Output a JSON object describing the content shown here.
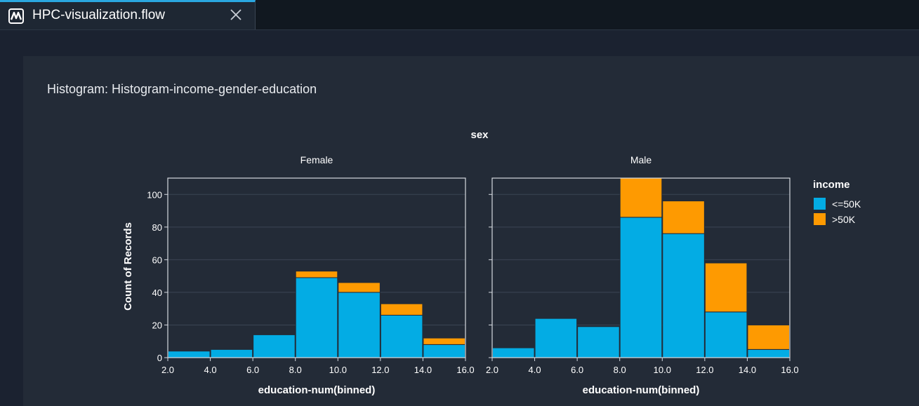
{
  "tab": {
    "title": "HPC-visualization.flow",
    "icon": "waveform-flow-icon",
    "close_icon": "close-icon",
    "accent": "#2aa7e0"
  },
  "panel": {
    "title": "Histogram: Histogram-income-gender-education"
  },
  "chart_data": {
    "type": "bar",
    "stacked": true,
    "facet_title": "sex",
    "xlabel": "education-num(binned)",
    "ylabel": "Count of Records",
    "ylim": [
      0,
      110
    ],
    "yticks": [
      0,
      20,
      40,
      60,
      80,
      100
    ],
    "xlim": [
      2,
      16
    ],
    "xticks": [
      "2.0",
      "4.0",
      "6.0",
      "8.0",
      "10.0",
      "12.0",
      "14.0",
      "16.0"
    ],
    "bins": [
      [
        2,
        4
      ],
      [
        4,
        6
      ],
      [
        6,
        8
      ],
      [
        8,
        10
      ],
      [
        10,
        12
      ],
      [
        12,
        14
      ],
      [
        14,
        16
      ]
    ],
    "legend": {
      "title": "income",
      "position": "right",
      "items": [
        {
          "label": "<=50K",
          "color": "#03ace4"
        },
        {
          "label": ">50K",
          "color": "#fe9a01"
        }
      ]
    },
    "facets": [
      {
        "name": "Female",
        "series": [
          {
            "name": "<=50K",
            "values": [
              4,
              5,
              14,
              49,
              40,
              26,
              8
            ]
          },
          {
            "name": ">50K",
            "values": [
              0,
              0,
              0,
              4,
              6,
              7,
              4
            ]
          }
        ]
      },
      {
        "name": "Male",
        "series": [
          {
            "name": "<=50K",
            "values": [
              6,
              24,
              19,
              86,
              76,
              28,
              5
            ]
          },
          {
            "name": ">50K",
            "values": [
              0,
              0,
              0,
              24,
              20,
              30,
              15
            ]
          }
        ]
      }
    ]
  }
}
